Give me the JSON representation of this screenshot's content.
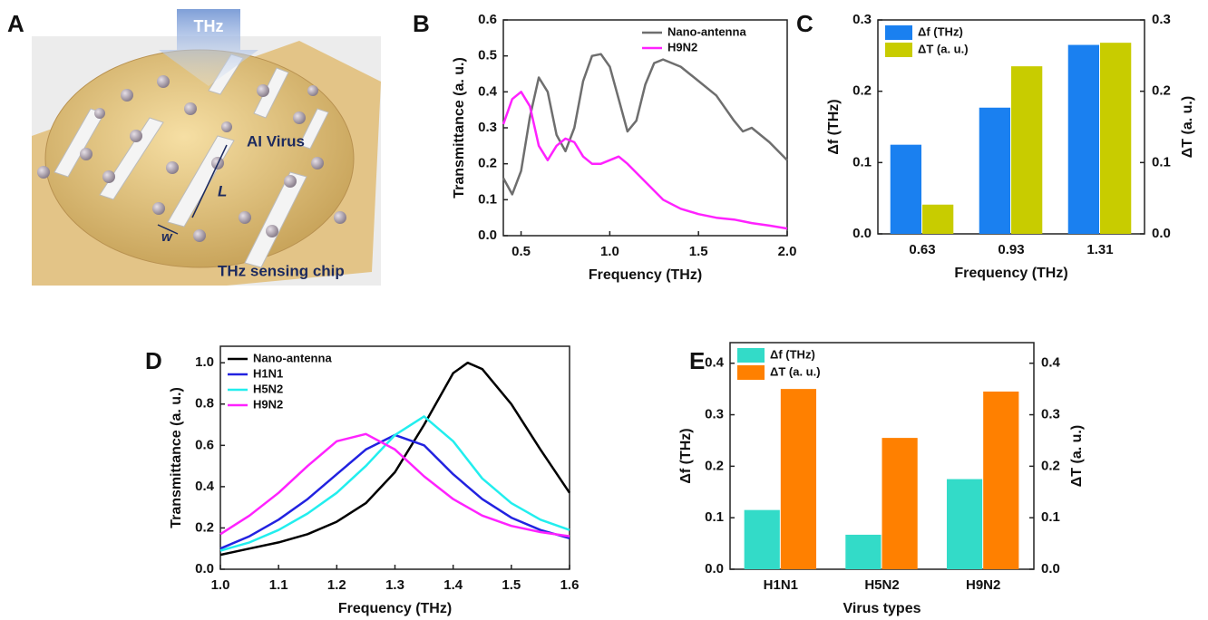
{
  "illustration": {
    "label": "A",
    "arrow_text": "THz",
    "virus_text": "AI Virus",
    "length_text": "L",
    "width_text": "w",
    "chip_text": "THz sensing chip"
  },
  "chart_data": [
    {
      "type": "line",
      "label": "B",
      "xlabel": "Frequency (THz)",
      "ylabel": "Transmittance (a. u.)",
      "x": [
        0.4,
        0.45,
        0.5,
        0.55,
        0.6,
        0.65,
        0.7,
        0.75,
        0.8,
        0.85,
        0.9,
        0.95,
        1.0,
        1.05,
        1.1,
        1.15,
        1.2,
        1.25,
        1.3,
        1.4,
        1.5,
        1.6,
        1.7,
        1.75,
        1.8,
        1.9,
        2.0
      ],
      "series": [
        {
          "name": "Nano-antenna",
          "color": "#6e6e6e",
          "values": [
            0.16,
            0.115,
            0.18,
            0.33,
            0.44,
            0.4,
            0.28,
            0.235,
            0.3,
            0.43,
            0.5,
            0.505,
            0.47,
            0.38,
            0.29,
            0.32,
            0.42,
            0.48,
            0.49,
            0.47,
            0.43,
            0.39,
            0.32,
            0.29,
            0.3,
            0.26,
            0.21
          ]
        },
        {
          "name": "H9N2",
          "color": "#ff22ff",
          "values": [
            0.31,
            0.38,
            0.4,
            0.36,
            0.25,
            0.21,
            0.25,
            0.27,
            0.26,
            0.22,
            0.2,
            0.2,
            0.21,
            0.22,
            0.2,
            0.175,
            0.15,
            0.125,
            0.1,
            0.075,
            0.06,
            0.05,
            0.045,
            0.04,
            0.035,
            0.028,
            0.02
          ]
        }
      ],
      "xlim": [
        0.4,
        2.0
      ],
      "xticks": [
        0.5,
        {
          "value": 1,
          "label": "1.0"
        },
        1.5,
        {
          "value": 2,
          "label": "2.0"
        }
      ],
      "ylim": [
        0,
        0.6
      ],
      "yticks": [
        {
          "value": 0,
          "label": "0.0"
        },
        0.1,
        0.2,
        0.3,
        0.4,
        0.5,
        0.6
      ],
      "legend": "upper right"
    },
    {
      "type": "bar",
      "label": "C",
      "xlabel": "Frequency (THz)",
      "ylabel": "Δf (THz)",
      "y2label": "ΔT (a. u.)",
      "categories": [
        "0.63",
        "0.93",
        "1.31"
      ],
      "series": [
        {
          "name": "Δf (THz)",
          "color": "#1a80f0",
          "values": [
            0.125,
            0.177,
            0.265
          ]
        },
        {
          "name": "ΔT (a. u.)",
          "color": "#c8cc00",
          "axis": "y2",
          "values": [
            0.041,
            0.235,
            0.268
          ]
        }
      ],
      "ylim": [
        0,
        0.3
      ],
      "yticks": [
        {
          "value": 0,
          "label": "0.0"
        },
        0.1,
        0.2,
        0.3
      ],
      "y2lim": [
        0,
        0.3
      ],
      "y2ticks": [
        {
          "value": 0,
          "label": "0.0"
        },
        0.1,
        0.2,
        0.3
      ],
      "legend": "upper left"
    },
    {
      "type": "line",
      "label": "D",
      "xlabel": "Frequency (THz)",
      "ylabel": "Transmittance (a. u.)",
      "x": [
        1.0,
        1.05,
        1.1,
        1.15,
        1.2,
        1.25,
        1.3,
        1.35,
        1.4,
        1.425,
        1.45,
        1.5,
        1.55,
        1.6
      ],
      "series": [
        {
          "name": "Nano-antenna",
          "color": "#000000",
          "values": [
            0.07,
            0.1,
            0.13,
            0.17,
            0.23,
            0.32,
            0.47,
            0.7,
            0.95,
            1.0,
            0.97,
            0.8,
            0.58,
            0.37
          ]
        },
        {
          "name": "H1N1",
          "color": "#2222e0",
          "values": [
            0.1,
            0.16,
            0.24,
            0.34,
            0.46,
            0.58,
            0.65,
            0.6,
            0.46,
            0.4,
            0.34,
            0.25,
            0.19,
            0.15
          ]
        },
        {
          "name": "H5N2",
          "color": "#22eeee",
          "values": [
            0.09,
            0.13,
            0.19,
            0.27,
            0.37,
            0.5,
            0.65,
            0.74,
            0.62,
            0.53,
            0.44,
            0.32,
            0.24,
            0.19
          ]
        },
        {
          "name": "H9N2",
          "color": "#ff22ff",
          "values": [
            0.17,
            0.26,
            0.37,
            0.5,
            0.62,
            0.655,
            0.58,
            0.45,
            0.34,
            0.3,
            0.26,
            0.21,
            0.18,
            0.16
          ]
        }
      ],
      "xlim": [
        1.0,
        1.6
      ],
      "xticks": [
        {
          "value": 1,
          "label": "1.0"
        },
        1.1,
        1.2,
        1.3,
        1.4,
        1.5,
        1.6
      ],
      "ylim": [
        0,
        1.08
      ],
      "yticks": [
        {
          "value": 0,
          "label": "0.0"
        },
        0.2,
        0.4,
        0.6,
        0.8,
        {
          "value": 1,
          "label": "1.0"
        }
      ],
      "legend": "upper left"
    },
    {
      "type": "bar",
      "label": "E",
      "xlabel": "Virus types",
      "ylabel": "Δf (THz)",
      "y2label": "ΔT (a. u.)",
      "categories": [
        "H1N1",
        "H5N2",
        "H9N2"
      ],
      "series": [
        {
          "name": "Δf (THz)",
          "color": "#33dbc8",
          "values": [
            0.115,
            0.067,
            0.175
          ]
        },
        {
          "name": "ΔT (a. u.)",
          "color": "#ff8000",
          "axis": "y2",
          "values": [
            0.35,
            0.255,
            0.345
          ]
        }
      ],
      "ylim": [
        0,
        0.44
      ],
      "yticks": [
        {
          "value": 0,
          "label": "0.0"
        },
        0.1,
        0.2,
        0.3,
        0.4
      ],
      "y2lim": [
        0,
        0.44
      ],
      "y2ticks": [
        {
          "value": 0,
          "label": "0.0"
        },
        0.1,
        0.2,
        0.3,
        0.4
      ],
      "legend": "upper left"
    }
  ]
}
